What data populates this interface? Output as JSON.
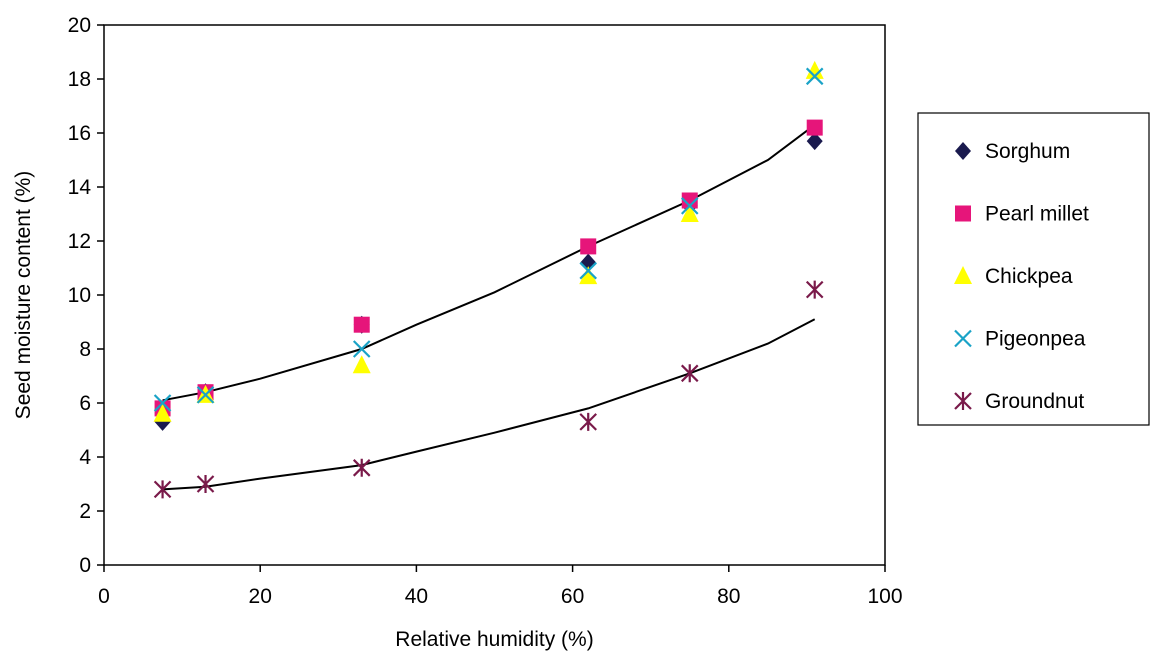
{
  "chart_data": {
    "type": "scatter",
    "xlabel": "Relative humidity (%)",
    "ylabel": "Seed moisture content (%)",
    "xlim": [
      0,
      100
    ],
    "ylim": [
      0,
      20
    ],
    "xticks": [
      0,
      20,
      40,
      60,
      80,
      100
    ],
    "yticks": [
      0,
      2,
      4,
      6,
      8,
      10,
      12,
      14,
      16,
      18,
      20
    ],
    "grid": false,
    "legend_position": "right",
    "series": [
      {
        "name": "Sorghum",
        "marker": "diamond",
        "color": "#1a1a4e",
        "x": [
          7.5,
          13,
          33,
          62,
          75,
          91
        ],
        "y": [
          5.3,
          6.4,
          8.9,
          11.2,
          13.3,
          15.7
        ]
      },
      {
        "name": "Pearl millet",
        "marker": "square",
        "color": "#e6157a",
        "x": [
          7.5,
          13,
          33,
          62,
          75,
          91
        ],
        "y": [
          5.8,
          6.4,
          8.9,
          11.8,
          13.5,
          16.2
        ]
      },
      {
        "name": "Chickpea",
        "marker": "triangle",
        "color": "#ffff00",
        "x": [
          7.5,
          13,
          33,
          62,
          75,
          91
        ],
        "y": [
          5.6,
          6.3,
          7.4,
          10.7,
          13.0,
          18.3
        ]
      },
      {
        "name": "Pigeonpea",
        "marker": "x",
        "color": "#1aa3c7",
        "x": [
          7.5,
          13,
          33,
          62,
          75,
          91
        ],
        "y": [
          6.0,
          6.3,
          8.0,
          10.9,
          13.3,
          18.1
        ]
      },
      {
        "name": "Groundnut",
        "marker": "star",
        "color": "#7a1a4a",
        "x": [
          7.5,
          13,
          33,
          62,
          75,
          91
        ],
        "y": [
          2.8,
          3.0,
          3.6,
          5.3,
          7.1,
          10.2
        ]
      }
    ],
    "trendlines": [
      {
        "x": [
          7.5,
          13,
          20,
          33,
          40,
          50,
          62,
          75,
          85,
          91
        ],
        "y": [
          6.1,
          6.4,
          6.9,
          8.0,
          8.9,
          10.1,
          11.8,
          13.5,
          15.0,
          16.3
        ]
      },
      {
        "x": [
          7.5,
          13,
          20,
          33,
          40,
          50,
          62,
          75,
          85,
          91
        ],
        "y": [
          2.8,
          2.9,
          3.2,
          3.7,
          4.2,
          4.9,
          5.8,
          7.1,
          8.2,
          9.1
        ]
      }
    ]
  }
}
